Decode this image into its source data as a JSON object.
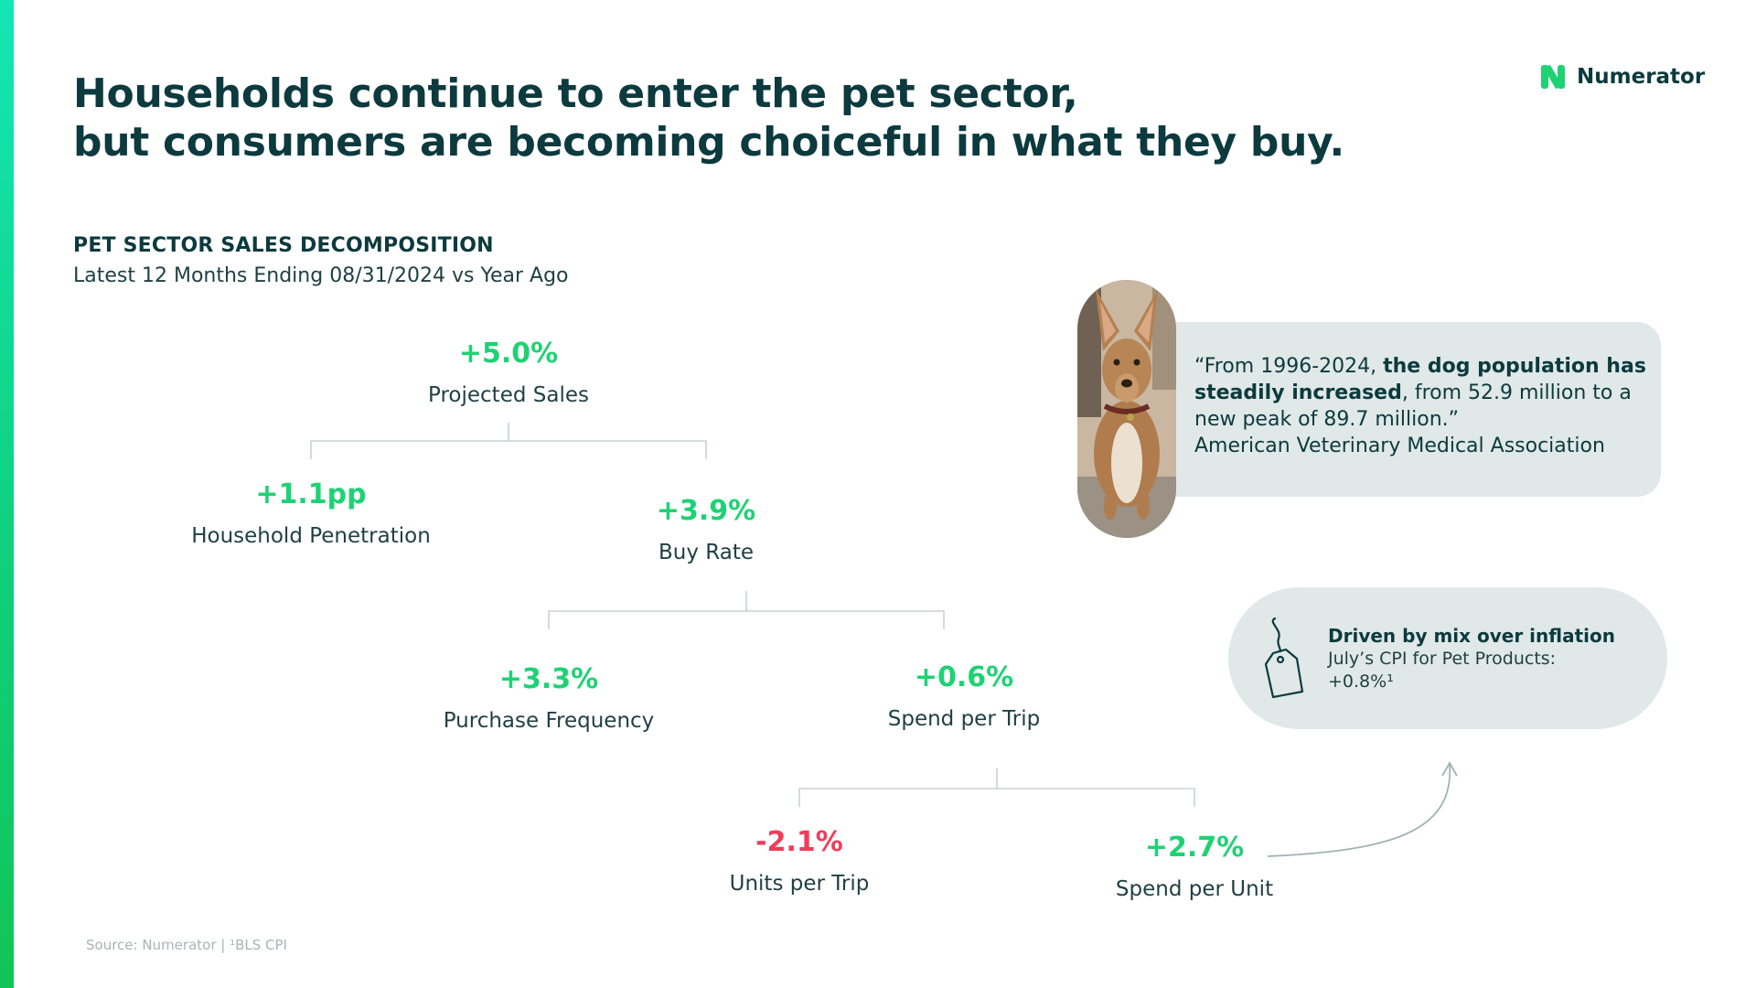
{
  "title": {
    "line1": "Households continue to enter the pet sector,",
    "line2": "but consumers are becoming choiceful in what they buy."
  },
  "logo": {
    "text": "Numerator",
    "icon": "numerator-n-logo",
    "color": "#1ed274"
  },
  "section": {
    "title": "PET SECTOR SALES DECOMPOSITION",
    "subtitle": "Latest 12 Months Ending 08/31/2024 vs Year Ago"
  },
  "tree": {
    "projected_sales": {
      "value": "+5.0%",
      "label": "Projected Sales",
      "trend": "positive"
    },
    "household_penetration": {
      "value": "+1.1pp",
      "label": "Household Penetration",
      "trend": "positive"
    },
    "buy_rate": {
      "value": "+3.9%",
      "label": "Buy Rate",
      "trend": "positive"
    },
    "purchase_frequency": {
      "value": "+3.3%",
      "label": "Purchase Frequency",
      "trend": "positive"
    },
    "spend_per_trip": {
      "value": "+0.6%",
      "label": "Spend per Trip",
      "trend": "positive"
    },
    "units_per_trip": {
      "value": "-2.1%",
      "label": "Units per Trip",
      "trend": "negative"
    },
    "spend_per_unit": {
      "value": "+2.7%",
      "label": "Spend per Unit",
      "trend": "positive"
    }
  },
  "quote": {
    "open": "“From 1996-2024, ",
    "bold": "the dog population has steadily increased",
    "rest": ", from 52.9 million to a new peak of 89.7 million.”",
    "attribution": "American Veterinary Medical Association",
    "image": "dog-photo"
  },
  "cpi_callout": {
    "title": "Driven by mix over inflation",
    "line1": "July’s CPI for Pet Products:",
    "line2": "+0.8%¹",
    "icon": "price-tag-icon"
  },
  "source": "Source: Numerator | ¹BLS CPI",
  "colors": {
    "dark_teal": "#0c3a3e",
    "positive": "#1ed274",
    "negative": "#f03c5a",
    "card_bg": "#e0e8e8",
    "connector": "#c8d2d4"
  }
}
